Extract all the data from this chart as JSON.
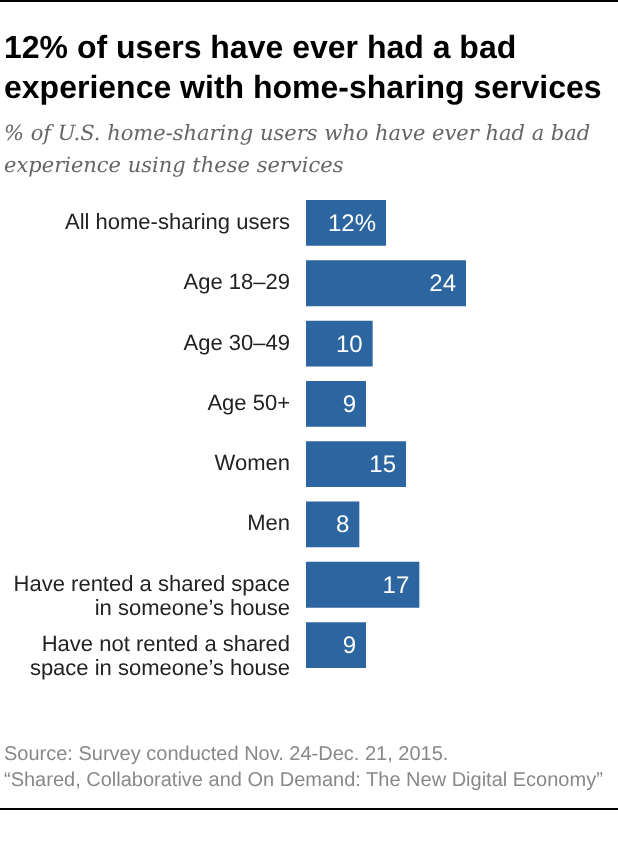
{
  "chart_data": {
    "type": "bar",
    "orientation": "horizontal",
    "title": "12% of users have ever had a bad experience with home-sharing services",
    "subtitle": "% of U.S. home-sharing users who have ever had a bad experience using these services",
    "categories": [
      "All home-sharing users",
      "Age 18–29",
      "Age 30–49",
      "Age 50+",
      "Women",
      "Men",
      "Have rented a shared space in someone’s house",
      "Have not rented a shared space in someone’s house"
    ],
    "values": [
      12,
      24,
      10,
      9,
      15,
      8,
      17,
      9
    ],
    "value_labels": [
      "12%",
      "24",
      "10",
      "9",
      "15",
      "8",
      "17",
      "9"
    ],
    "color": "#2c659f",
    "annotations": [
      "Source: Survey conducted Nov. 24-Dec. 21, 2015.",
      "“Shared, Collaborative and On Demand: The New Digital Economy”"
    ]
  }
}
